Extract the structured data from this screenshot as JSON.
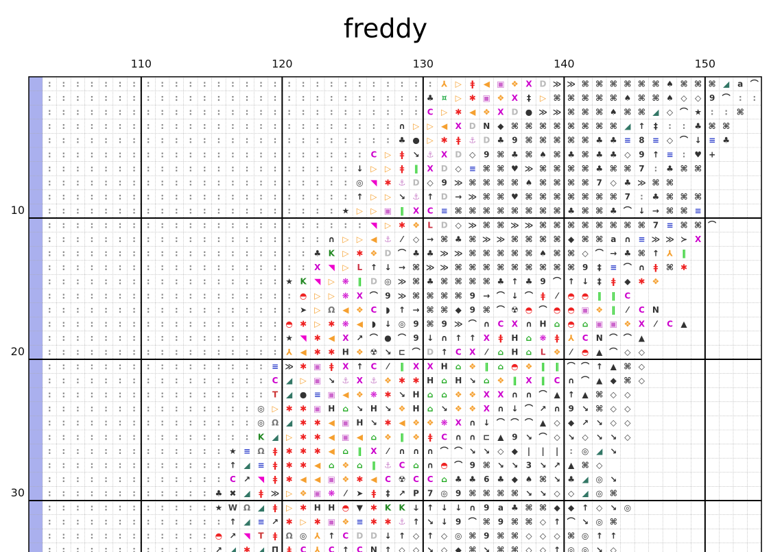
{
  "header": {
    "title": "freddy"
  },
  "column_labels": [
    110,
    120,
    130,
    140,
    150
  ],
  "row_labels": [
    10,
    20,
    30
  ],
  "first_column": 103,
  "first_row": 1,
  "symbol_colors": {
    "▷": "#f5a030",
    "◀": "#f5a030",
    "❖": "#f5a030",
    "✱": "#ee2222",
    "ǂ": "#ee2222",
    "▣": "#cc66cc",
    "X": "#cc00cc",
    "D": "#bbbbbb",
    "L": "#cc3344",
    "C": "#cc00cc",
    "⅄": "#f5a030",
    "¤": "#22aa44",
    "‖": "#22cc22",
    "◥": "#ee00cc",
    "⚓": "#cc88cc",
    "❋": "#cc00cc",
    "⌂": "#22aa22",
    "◓": "#ee2222",
    "≡": "#3344cc",
    "T": "#cc3333",
    "Ω": "#777777",
    "K": "#228822",
    "W": "#444444",
    "◢": "#337766",
    ":": "#888888"
  },
  "grid": {
    "rows": [
      "::::::::::::::::::::::::::::⅄▷ǂ◀▣❖XD≫≫⌘⌘⌘⌘⌘⌘♠⌘⌘⌘◢a⌒≡",
      ":::::::::::::::::::::::::::♣¤▷✱▣❖X‡▷⌘⌘⌘⌘⌘♠⌘⌘♠◇◇9⌒::⌘",
      ":::::::::::::::::::::::::::C▷✱◀❖XD●≫≫⌘⌘⌘♠⌘⌘◢◇⌒★::⌘",
      ":::::::::::::::::::::::::∩▷▷◀XDN◆⌘⌘⌘⌘⌘⌘⌘⌘◢↑‡::♣⌘⌘",
      ":::::::::::::::::::::::::♣●▷✱ǂ⚓D♣9⌘⌘⌘⌘⌘♣♣≡8≡◇⌒↓≡♣",
      ":::::::::::::::::::::::C▷ǂ↘⚓XD◇9⌘♣⌘♠⌘♣⌘♣♣◇9↑≡:♥+",
      "::::::::::::::::::::::↓▷▷ǂ‖XD◇≡⌘⌘♥≫⌘⌘⌘⌘♣⌘⌘7:♣⌘⌘",
      "::::::::::::::::::::::◎◥✱⚓D◇9≫⌘⌘⌘⌘♠⌘⌘⌘⌘7◇♣≫⌘⌘",
      "::::::::::::::::::::::↑▷▷↘⚓↑D→≫⌘⌘♥⌘⌘⌘⌘⌘⌘⌘7:♣⌘⌘⌘",
      ":::::::::::::::::::::★▷▷▣‖XC≡⌘⌘⌘⌘⌘⌘⌘⌘♣⌘⌘♣⌒↓→⌘⌘≡",
      ":::::::::::::::::::::::◥▷✱❖LD◇≫⌘⌘≫≫⌘⌘⌘⌘⌘⌘⌘⌘7≡⌘⌘⌒",
      "::::::::::::::::::::∩▷▷◀⚓⁄◇→⌘♣⌘≫≫⌘⌘⌘⌘◆⌘⌘a∩≡≫≫≻X",
      ":::::::::::::::::::♣K▷✱❖D⌒♣♣≫≫⌘⌘⌘⌘⌘♠⌘⌘◇⌒→♣⌘↑⅄‖",
      ":::::::::::::::::::X◥▷L↑↓→⌘≫≫⌘⌘⌘⌘⌘⌘⌘⌘⌘9‡≡⌒∩ǂ⌘✱",
      ":::::::::::::::::★K◥▷❋‖D◎≫⌘♣⌘⌘⌘⌘♣↑♣9⌒↑↓‡ǂ◆✱❖",
      "::::::::::::::::::◓▷▷❋X⌒9≫⌘⌘⌘⌘9→⌒↓⌒ǂ⁄◓◓‖‖C",
      "::::::::::::::::::➤▷Ω◀❖C◗↑→⌘⌘◆9⌘⌒☢◓⌒◓◓▣❖‖⁄CN",
      ":::::::::::::::::◓✱▷✱❋◀◗↓◎9⌘9≫⌒∩CX∩H⌂◓⌂▣▣❖X⁄C▲",
      ":::::::::::::::::★◥✱◀X↗⌒●⌒9↓∩↑↑XǂH⌂❋ǂ⅄CN⌒⌒▲",
      ":::::::::::::::::⅄◀✱✱H❖☢↘⊏⌒D↑CX⁄⌂H⌂L❖⁄◓▲⌒◇◇",
      "::::::::::::::::≡≫✱▣ǂX↑C⁄‖XXH⌂❖‖⌂◓❖‖‖⌒⌒↑▲⌘◇",
      "::::::::::::::::C◢▷▣↘⚓X⚓❖✱✱H⌂H↘⌂❖‖X‖C∩⌒▲◆⌘◇",
      "::::::::::::::::T◢●≡▣◀❖❋✱↘H⌂⌂❖❖XX∩∩⌒▲↑▲⌘◇◇",
      ":::::::::::::::◎▷✱✱▣H⌂↘H↘❖H⌂↘❖❖X∩↓⌒↗∩9↘⌘◇◇",
      ":::::::::::::::◎Ω◢✱✱◀▣H↘✱◀❖❖❋X∩↓⌒⌒⌒▲◇◆↗↘◇◇",
      ":::::::::::::::K◢▷✱✱◀▣◀⌂❖‖❖ǂC∩∩⊏▲9↘⌒◇↘◇↘↘◇",
      ":::::::::::::★≡Ωǂ✱✱✱◀⌂‖X⁄∩∩∩⌒⌒↘↘◇◆|||:◎◢↘",
      ":::::::::::::↑◢≡ǂ✱✱◀⌂❖⌂‖⚓C⌂∩◓⌒9⌘↘↘3↘↗▲⌘◇",
      ":::::::::::::C↗◥ǂ✱◀◀▣❖✱◀C☢CC⌂♣♣6♣◆♠⌘↘♣◢◎↘",
      "::::::::::::♣✖◢ǂ≫▷❖▣❋⁄➤ǂ‡↗P7◎9⌘⌘⌘⌘↘↘◇◇◢◎⌘",
      "::::::::::::★WΩ◢ǂ▷✱HH◓▼✱KKↆ↑↓↓∩9a♣⌘⌘◆◆↑◇↘◎",
      ":::::::::::::↑◢≡↗✱▷✱▣❖≡✱✱⚓↑↘↓9⌒⌘9⌘⌘◇↑⌒↘◎⌘",
      "::::::::::::◓↗◥TǂΩ◎⅄↑CDD↓↑◇↑◇◎⌘9⌘⌘◇◇◇⌘◎↑↑",
      "::::::::::::↗◢✱◢ΠǂC⅄C↑CN↑◇◇↘◇◆⌘↘⌘⌘◇◇↑◎◎↘◇"
    ]
  }
}
